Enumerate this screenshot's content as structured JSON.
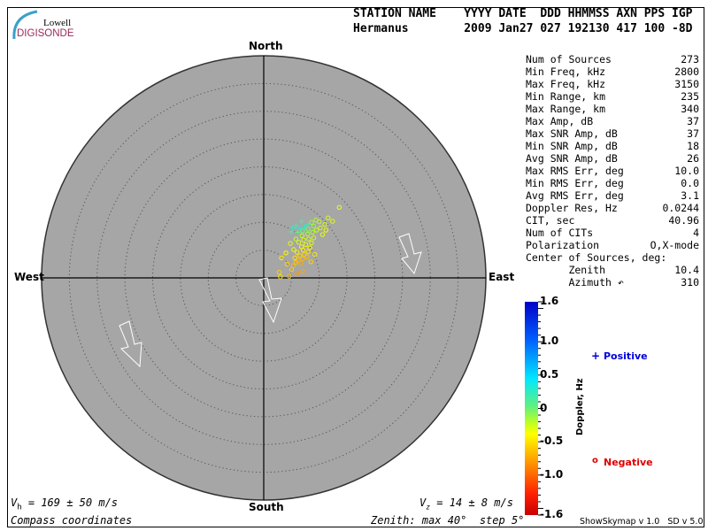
{
  "logo": {
    "line1": "Lowell",
    "line2": "DIGISONDE"
  },
  "header": {
    "row1": "STATION NAME    YYYY DATE  DDD HHMMSS AXN PPS IGP",
    "row2": "Hermanus        2009 Jan27 027 192130 417 100 -8D"
  },
  "stats": [
    {
      "label": "Num of Sources",
      "value": "273"
    },
    {
      "label": "Min Freq, kHz",
      "value": "2800"
    },
    {
      "label": "Max Freq, kHz",
      "value": "3150"
    },
    {
      "label": "Min Range, km",
      "value": "235"
    },
    {
      "label": "Max Range, km",
      "value": "340"
    },
    {
      "label": "Max Amp, dB",
      "value": "37"
    },
    {
      "label": "Max SNR Amp, dB",
      "value": "37"
    },
    {
      "label": "Min SNR Amp, dB",
      "value": "18"
    },
    {
      "label": "Avg SNR Amp, dB",
      "value": "26"
    },
    {
      "label": "Max RMS Err, deg",
      "value": "10.0"
    },
    {
      "label": "Min RMS Err, deg",
      "value": "0.0"
    },
    {
      "label": "Avg RMS Err, deg",
      "value": "3.1"
    },
    {
      "label": "Doppler Res, Hz",
      "value": "0.0244"
    },
    {
      "label": "CIT, sec",
      "value": "40.96"
    },
    {
      "label": "Num of CITs",
      "value": "4"
    },
    {
      "label": "Polarization",
      "value": "O,X-mode"
    },
    {
      "label": "Center of Sources, deg:",
      "value": ""
    },
    {
      "label": "       Zenith",
      "value": "10.4"
    },
    {
      "label": "       Azimuth ↶",
      "value": "310"
    }
  ],
  "footer": {
    "vh": "V",
    "vh_sub": "h",
    "vh_val": " = 169 ± 50 m/s",
    "vz": "V",
    "vz_sub": "z",
    "vz_val": " = 14 ± 8 m/s",
    "coords": "Compass coordinates",
    "zenith": "Zenith: max 40°  step 5°",
    "version": "ShowSkymap v 1.0   SD v 5.0"
  },
  "chart_data": {
    "type": "scatter",
    "projection": "polar skymap",
    "directions": {
      "north": "North",
      "south": "South",
      "east": "East",
      "west": "West"
    },
    "zenith_max_deg": 40,
    "zenith_step_deg": 5,
    "background": "#a6a6a6",
    "colorbar": {
      "label": "Doppler, Hz",
      "ticks": [
        "1.6",
        "1.0",
        "0.5",
        "0",
        "-0.5",
        "-1.0",
        "-1.6"
      ],
      "tick_values": [
        1.6,
        1.0,
        0.5,
        0,
        -0.5,
        -1.0,
        -1.6
      ],
      "range": [
        -1.6,
        1.6
      ]
    },
    "legend": {
      "positive": "Positive",
      "negative": "Negative",
      "positive_symbol": "+",
      "negative_symbol": "o",
      "positive_color": "#0000dd",
      "negative_color": "#dd0000"
    },
    "point_fields": [
      "east_deg",
      "north_deg",
      "doppler_hz"
    ],
    "points": [
      [
        5.0,
        1.5,
        -0.6
      ],
      [
        5.3,
        2.2,
        -0.7
      ],
      [
        5.8,
        2.8,
        -0.65
      ],
      [
        6.2,
        3.1,
        -0.7
      ],
      [
        6.7,
        2.6,
        -0.75
      ],
      [
        7.0,
        3.4,
        -0.7
      ],
      [
        6.5,
        4.0,
        -0.6
      ],
      [
        5.6,
        3.6,
        -0.55
      ],
      [
        7.3,
        4.2,
        -0.6
      ],
      [
        7.8,
        3.8,
        -0.65
      ],
      [
        6.0,
        4.6,
        -0.5
      ],
      [
        7.1,
        5.0,
        -0.5
      ],
      [
        8.0,
        4.7,
        -0.55
      ],
      [
        8.3,
        5.4,
        -0.45
      ],
      [
        6.8,
        5.6,
        -0.45
      ],
      [
        5.4,
        5.1,
        -0.4
      ],
      [
        7.6,
        6.0,
        -0.4
      ],
      [
        8.6,
        6.3,
        -0.35
      ],
      [
        6.3,
        6.4,
        -0.3
      ],
      [
        7.2,
        6.8,
        -0.3
      ],
      [
        8.1,
        7.0,
        -0.25
      ],
      [
        9.0,
        7.2,
        -0.25
      ],
      [
        5.8,
        7.0,
        -0.2
      ],
      [
        6.9,
        7.6,
        -0.2
      ],
      [
        7.9,
        7.9,
        -0.15
      ],
      [
        8.8,
        8.2,
        -0.15
      ],
      [
        9.5,
        8.6,
        -0.2
      ],
      [
        10.2,
        9.0,
        -0.25
      ],
      [
        9.0,
        9.3,
        -0.1
      ],
      [
        8.0,
        8.8,
        -0.05
      ],
      [
        7.0,
        8.5,
        0.0
      ],
      [
        6.1,
        8.2,
        0.05
      ],
      [
        10.0,
        10.1,
        -0.2
      ],
      [
        11.0,
        9.6,
        -0.3
      ],
      [
        11.6,
        10.8,
        -0.3
      ],
      [
        9.4,
        10.4,
        -0.15
      ],
      [
        8.6,
        10.0,
        -0.1
      ],
      [
        12.4,
        10.2,
        -0.35
      ],
      [
        13.6,
        12.7,
        -0.4
      ],
      [
        3.2,
        3.6,
        -0.5
      ],
      [
        2.8,
        1.0,
        -0.6
      ],
      [
        3.0,
        0.2,
        -0.55
      ],
      [
        4.6,
        0.3,
        -0.7
      ],
      [
        4.2,
        2.5,
        -0.6
      ],
      [
        6.0,
        0.8,
        -0.8
      ],
      [
        7.0,
        1.2,
        -0.75
      ],
      [
        8.5,
        2.9,
        -0.6
      ],
      [
        9.2,
        4.2,
        -0.5
      ],
      [
        4.8,
        6.2,
        -0.35
      ],
      [
        4.0,
        4.5,
        -0.45
      ],
      [
        10.6,
        7.8,
        -0.35
      ],
      [
        11.2,
        8.6,
        -0.4
      ],
      [
        5.2,
        9.0,
        0.3
      ],
      [
        5.8,
        9.4,
        0.25
      ],
      [
        6.5,
        8.9,
        0.35
      ],
      [
        7.4,
        9.2,
        0.3
      ],
      [
        5.0,
        8.3,
        0.2
      ],
      [
        7.9,
        9.6,
        0.25
      ],
      [
        6.8,
        10.2,
        0.2
      ]
    ]
  }
}
